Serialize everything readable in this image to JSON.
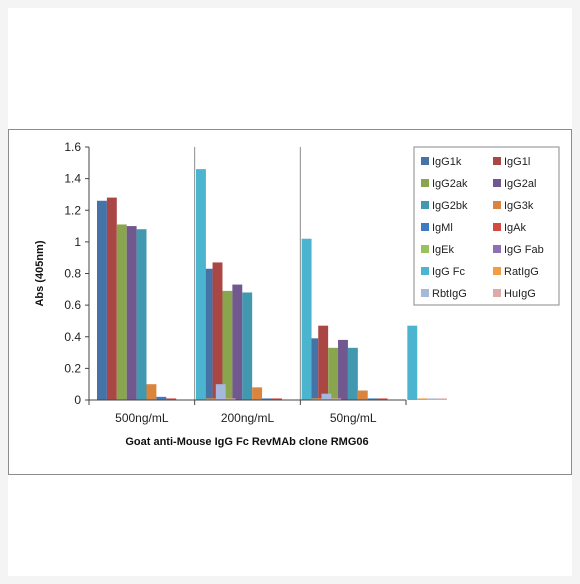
{
  "chart_data": {
    "type": "bar",
    "title": "",
    "xlabel": "Goat anti-Mouse IgG Fc RevMAb clone RMG06",
    "ylabel": "Abs (405nm)",
    "ylim": [
      0,
      1.6
    ],
    "yticks": [
      "0",
      "0.2",
      "0.4",
      "0.6",
      "0.8",
      "1",
      "1.2",
      "1.4",
      "1.6"
    ],
    "grid": "vertical category separators",
    "legend": "top-right, inside, 2 columns",
    "categories": [
      "500ng/mL",
      "200ng/mL",
      "50ng/mL"
    ],
    "series": [
      {
        "name": "IgG1k",
        "color": "#4572A7",
        "values": [
          1.26,
          0.83,
          0.39
        ]
      },
      {
        "name": "IgG1l",
        "color": "#AA4643",
        "values": [
          1.28,
          0.87,
          0.47
        ]
      },
      {
        "name": "IgG2ak",
        "color": "#89A54E",
        "values": [
          1.11,
          0.69,
          0.33
        ]
      },
      {
        "name": "IgG2al",
        "color": "#71588F",
        "values": [
          1.1,
          0.73,
          0.38
        ]
      },
      {
        "name": "IgG2bk",
        "color": "#4198AF",
        "values": [
          1.08,
          0.68,
          0.33
        ]
      },
      {
        "name": "IgG3k",
        "color": "#DB843D",
        "values": [
          0.1,
          0.08,
          0.06
        ]
      },
      {
        "name": "IgMl",
        "color": "#3E7BC0",
        "values": [
          0.02,
          0.01,
          0.01
        ]
      },
      {
        "name": "IgAk",
        "color": "#D24B43",
        "values": [
          0.01,
          0.01,
          0.01
        ]
      },
      {
        "name": "IgEk",
        "color": "#98C35A",
        "values": [
          0.0,
          0.0,
          0.0
        ]
      },
      {
        "name": "IgG Fab",
        "color": "#8F6FB4",
        "values": [
          0.0,
          0.0,
          0.0
        ]
      },
      {
        "name": "IgG Fc",
        "color": "#4BB5CF",
        "values": [
          1.46,
          1.02,
          0.47
        ]
      },
      {
        "name": "RatIgG",
        "color": "#F59C43",
        "values": [
          0.01,
          0.01,
          0.01
        ]
      },
      {
        "name": "RbtIgG",
        "color": "#A6B9DC",
        "values": [
          0.1,
          0.04,
          0.01
        ]
      },
      {
        "name": "HuIgG",
        "color": "#DEAAA8",
        "values": [
          0.01,
          0.01,
          0.01
        ]
      }
    ]
  }
}
